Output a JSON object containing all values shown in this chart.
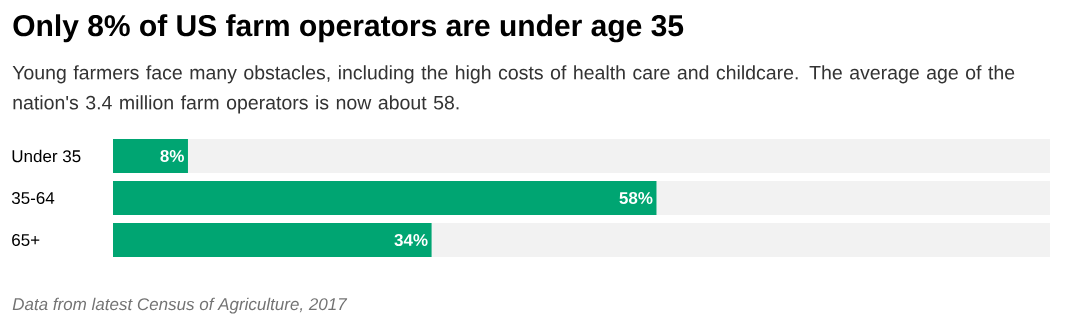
{
  "chart_data": {
    "type": "bar",
    "orientation": "horizontal",
    "title": "Only 8% of US farm operators are under age 35",
    "subtitle": "Young farmers face many obstacles, including the high costs of health care and childcare. The average age of the nation's 3.4 million farm operators is now about 58.",
    "categories": [
      "Under 35",
      "35-64",
      "65+"
    ],
    "values": [
      8,
      58,
      34
    ],
    "value_labels": [
      "8%",
      "58%",
      "34%"
    ],
    "color": "#00a572",
    "xlim": [
      0,
      100
    ],
    "tick_labels": "y",
    "annotations": [
      "Data from latest Census of Agriculture, 2017"
    ]
  }
}
